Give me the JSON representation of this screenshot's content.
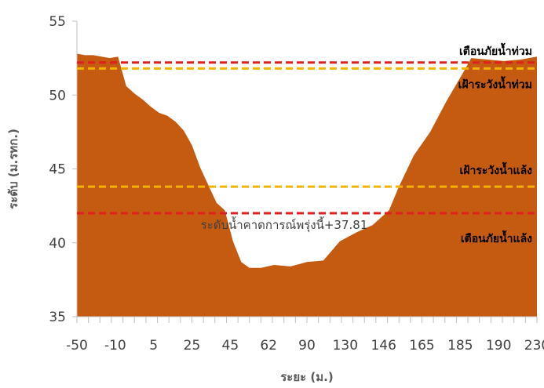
{
  "chart_data": {
    "type": "area",
    "title": "",
    "xlabel": "ระยะ (ม.)",
    "ylabel": "ระดับ (ม.รทก.)",
    "ylim": [
      35,
      55
    ],
    "yticks": [
      "35",
      "40",
      "45",
      "50",
      "55"
    ],
    "xtick_labels": [
      "-50",
      "-10",
      "5",
      "25",
      "45",
      "62",
      "90",
      "130",
      "146",
      "165",
      "185",
      "190",
      "230"
    ],
    "area_color": "#c55a11",
    "profile": {
      "x": [
        -50,
        -45,
        -40,
        -35,
        -30,
        -25,
        -20,
        -15,
        -10,
        -5,
        0,
        5,
        10,
        15,
        20,
        25,
        30,
        35,
        40,
        45,
        50,
        55,
        62,
        70,
        80,
        90,
        100,
        110,
        120,
        130,
        140,
        146,
        155,
        165,
        175,
        185,
        190,
        200,
        210,
        220,
        230
      ],
      "y": [
        52.8,
        52.7,
        52.7,
        52.6,
        52.5,
        52.6,
        50.6,
        50.1,
        49.7,
        49.2,
        48.8,
        48.6,
        48.2,
        47.6,
        46.6,
        45.1,
        43.9,
        42.7,
        42.2,
        40.1,
        38.7,
        38.3,
        38.3,
        38.5,
        38.4,
        38.7,
        38.8,
        40.1,
        40.7,
        41.2,
        42.2,
        43.8,
        45.9,
        47.5,
        49.6,
        51.5,
        52.5,
        52.4,
        52.3,
        52.4,
        52.6
      ]
    },
    "reference_lines": [
      {
        "label": "เตือนภัยน้ำท่วม",
        "value": 52.2,
        "color": "#e02020"
      },
      {
        "label": "เฝ้าระวังน้ำท่วม",
        "value": 51.8,
        "color": "#f2b400"
      },
      {
        "label": "เฝ้าระวังน้ำแล้ง",
        "value": 43.8,
        "color": "#f2b400"
      },
      {
        "label": "เตือนภัยน้ำแล้ง",
        "value": 42.0,
        "color": "#e02020"
      }
    ],
    "forecast_label": "ระดับน้ำคาดการณ์พรุ่งนี้+37.81",
    "forecast_value": 37.81
  },
  "colors": {
    "axis": "#bfbfbf",
    "text": "#404040"
  }
}
